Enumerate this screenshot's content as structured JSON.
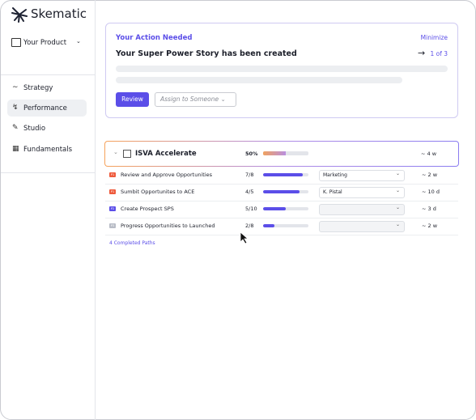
{
  "sidebar": {
    "brand": "Skematic",
    "product": "Your Product",
    "nav": [
      "Strategy",
      "Performance",
      "Studio",
      "Fundamentals"
    ]
  },
  "action_card": {
    "heading": "Your Action Needed",
    "minimize": "Minimize",
    "message": "Your Super Power Story has been created",
    "pager": "1 of 3",
    "review": "Review",
    "assign": "Assign to Someone"
  },
  "path": {
    "title": "ISVA Accelerate",
    "progress": "50%",
    "duration": "~ 4 w",
    "rows": [
      {
        "badge": "P1",
        "name": "Review and Approve Opportunities",
        "progress": "7/8",
        "owner": "Marketing",
        "duration": "~ 2 w"
      },
      {
        "badge": "P1",
        "name": "Sumbit Opportunites to ACE",
        "progress": "4/5",
        "owner": "K. Pistal",
        "duration": "~ 10 d"
      },
      {
        "badge": "P2",
        "name": "Create Prospect SPS",
        "progress": "5/10",
        "duration": "~ 3 d"
      },
      {
        "badge": "P3",
        "name": "Progress Opportunities to Launched",
        "progress": "2/8",
        "duration": "~ 2 w"
      }
    ],
    "completed": "4 Completed Paths"
  }
}
